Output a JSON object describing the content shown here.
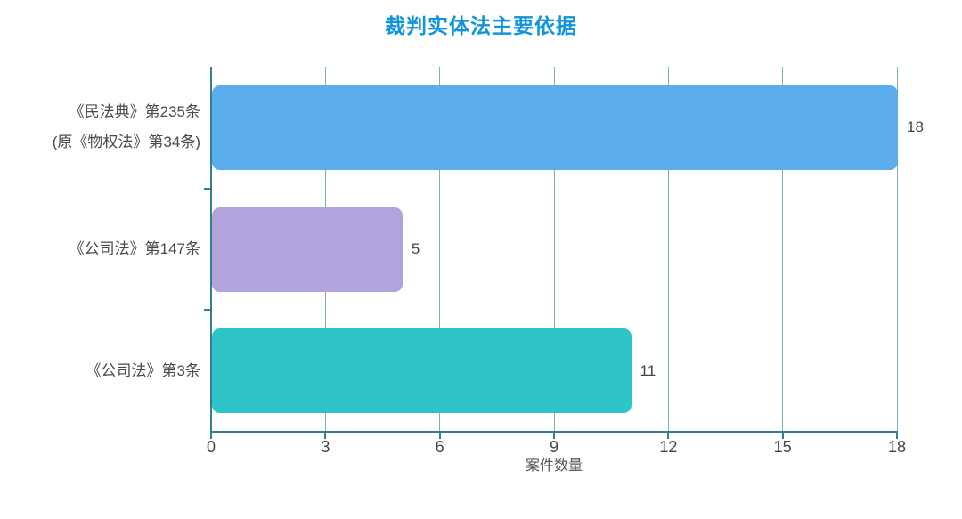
{
  "chart_data": {
    "type": "bar",
    "orientation": "horizontal",
    "title": "裁判实体法主要依据",
    "xlabel": "案件数量",
    "categories": [
      "《民法典》第235条 (原《物权法》第34条)",
      "《公司法》第147条",
      "《公司法》第3条"
    ],
    "category_lines": [
      [
        "《民法典》第235条",
        "(原《物权法》第34条)"
      ],
      [
        "《公司法》第147条"
      ],
      [
        "《公司法》第3条"
      ]
    ],
    "values": [
      18,
      5,
      11
    ],
    "value_labels": [
      "18",
      "5",
      "11"
    ],
    "xlim": [
      0,
      18
    ],
    "xticks": [
      "0",
      "3",
      "6",
      "9",
      "12",
      "15",
      "18"
    ],
    "grid": true,
    "legend": "none",
    "colors": {
      "bars": [
        "#5badee",
        "#b3a3dd",
        "#2fc4c7"
      ],
      "title": "#1094db",
      "axis": "#35808f",
      "gridline": "#7fafbb",
      "tick_label": "#444444",
      "category_label": "#4a4a4a",
      "background": "#ffffff"
    }
  }
}
